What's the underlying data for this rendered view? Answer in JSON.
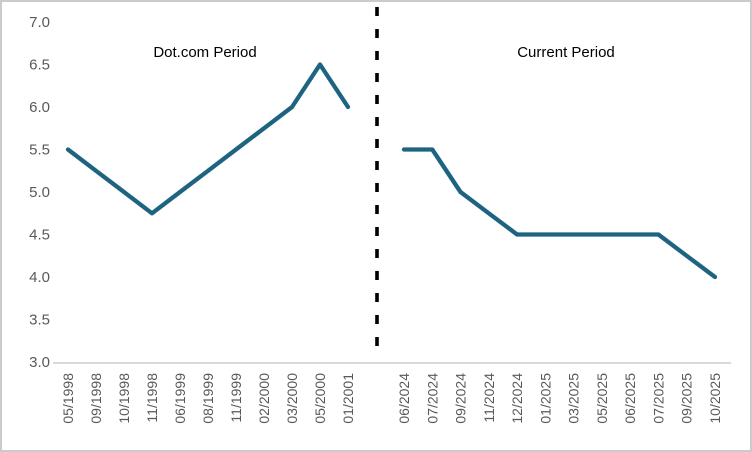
{
  "frame": {
    "background": "#ffffff",
    "border_color": "#cbcbcb"
  },
  "chart_data": {
    "type": "line",
    "title": "",
    "xlabel": "",
    "ylabel": "",
    "ylim": [
      3.0,
      7.0
    ],
    "ytick_step": 0.5,
    "yticks": [
      "7.0",
      "6.5",
      "6.0",
      "5.5",
      "5.0",
      "4.5",
      "4.0",
      "3.5",
      "3.0"
    ],
    "grid": false,
    "legend": "none",
    "line_color": "#1e6481",
    "axis_line_color": "#d9d9d9",
    "tick_label_color": "#595959",
    "divider": {
      "style": "dashed",
      "color": "#000000",
      "position": "between-panels"
    },
    "annotations": [
      {
        "text": "Dot.com Period"
      },
      {
        "text": "Current Period"
      }
    ],
    "series": [
      {
        "name": "Dot.com Period",
        "categories": [
          "05/1998",
          "09/1998",
          "10/1998",
          "11/1998",
          "06/1999",
          "08/1999",
          "11/1999",
          "02/2000",
          "03/2000",
          "05/2000",
          "01/2001"
        ],
        "values": [
          5.5,
          5.25,
          5.0,
          4.75,
          5.0,
          5.25,
          5.5,
          5.75,
          6.0,
          6.5,
          6.0
        ]
      },
      {
        "name": "Current Period",
        "categories": [
          "06/2024",
          "07/2024",
          "09/2024",
          "11/2024",
          "12/2024",
          "01/2025",
          "03/2025",
          "05/2025",
          "06/2025",
          "07/2025",
          "09/2025",
          "10/2025"
        ],
        "values": [
          5.5,
          5.5,
          5.0,
          4.75,
          4.5,
          4.5,
          4.5,
          4.5,
          4.5,
          4.5,
          4.25,
          4.0
        ]
      }
    ]
  }
}
